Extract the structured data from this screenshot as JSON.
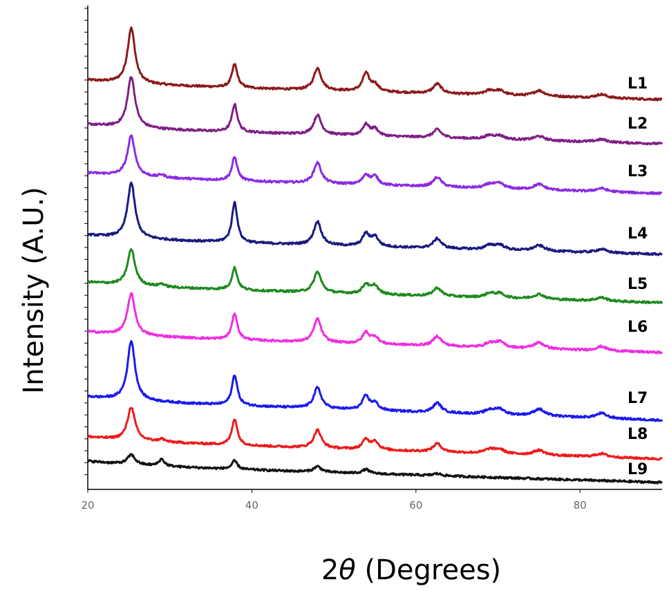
{
  "chart_data": {
    "type": "line",
    "title": "",
    "xlabel_prefix": "2",
    "xlabel_symbol": "θ",
    "xlabel_suffix": " (Degrees)",
    "ylabel": "Intensity (A.U.)",
    "xlim": [
      20,
      90
    ],
    "x_ticks": [
      20,
      40,
      60,
      80
    ],
    "y_ticks_shown": false,
    "legend": "inline-right",
    "peaks": [
      {
        "x": 25.3,
        "w": 0.55
      },
      {
        "x": 29.0,
        "w": 0.4
      },
      {
        "x": 37.9,
        "w": 0.4
      },
      {
        "x": 48.0,
        "w": 0.55
      },
      {
        "x": 53.9,
        "w": 0.5
      },
      {
        "x": 55.0,
        "w": 0.5
      },
      {
        "x": 62.6,
        "w": 0.6
      },
      {
        "x": 69.0,
        "w": 0.7
      },
      {
        "x": 70.2,
        "w": 0.7
      },
      {
        "x": 75.0,
        "w": 0.8
      },
      {
        "x": 82.6,
        "w": 0.8
      }
    ],
    "series": [
      {
        "name": "L1",
        "color": "#8b1a1a",
        "heights": [
          80,
          0,
          34,
          32,
          26,
          10,
          14,
          6,
          6,
          8,
          5
        ]
      },
      {
        "name": "L2",
        "color": "#7e1f86",
        "heights": [
          74,
          0,
          40,
          28,
          16,
          10,
          12,
          5,
          5,
          6,
          4
        ]
      },
      {
        "name": "L3",
        "color": "#8b2be2",
        "heights": [
          58,
          4,
          34,
          30,
          14,
          12,
          14,
          6,
          7,
          8,
          5
        ]
      },
      {
        "name": "L4",
        "color": "#1a1a7e",
        "heights": [
          80,
          0,
          58,
          34,
          18,
          14,
          14,
          6,
          7,
          8,
          5
        ]
      },
      {
        "name": "L5",
        "color": "#1e8a1e",
        "heights": [
          52,
          4,
          32,
          30,
          14,
          12,
          12,
          6,
          6,
          7,
          5
        ]
      },
      {
        "name": "L6",
        "color": "#ee2ee0",
        "heights": [
          60,
          0,
          38,
          34,
          16,
          10,
          14,
          6,
          8,
          9,
          6
        ]
      },
      {
        "name": "L7",
        "color": "#1a1aee",
        "heights": [
          86,
          0,
          44,
          30,
          20,
          10,
          14,
          6,
          8,
          10,
          7
        ]
      },
      {
        "name": "L8",
        "color": "#ee1a1a",
        "heights": [
          48,
          4,
          38,
          26,
          14,
          12,
          12,
          6,
          6,
          7,
          5
        ]
      },
      {
        "name": "L9",
        "color": "#111111",
        "heights": [
          14,
          10,
          12,
          8,
          6,
          0,
          3,
          0,
          0,
          0,
          0
        ]
      }
    ]
  }
}
